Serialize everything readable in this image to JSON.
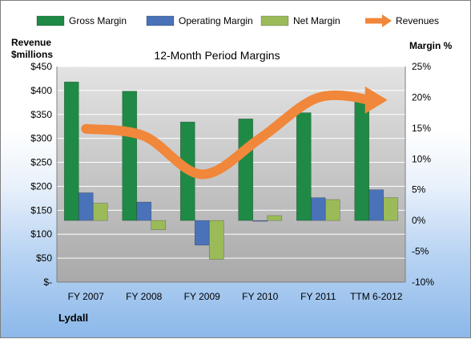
{
  "chart_data": {
    "type": "bar",
    "title": "12-Month Period Margins",
    "company": "Lydall",
    "y_left_label_line1": "Revenue",
    "y_left_label_line2": "$millions",
    "y_right_label": "Margin %",
    "categories": [
      "FY 2007",
      "FY 2008",
      "FY 2009",
      "FY 2010",
      "FY 2011",
      "TTM 6-2012"
    ],
    "ylim_left": [
      0,
      450
    ],
    "ylim_right": [
      -10,
      25
    ],
    "left_ticks": [
      0,
      50,
      100,
      150,
      200,
      250,
      300,
      350,
      400,
      450
    ],
    "left_tick_labels": [
      "$-",
      "$50",
      "$100",
      "$150",
      "$200",
      "$250",
      "$300",
      "$350",
      "$400",
      "$450"
    ],
    "right_ticks": [
      -10,
      -5,
      0,
      5,
      10,
      15,
      20,
      25
    ],
    "right_tick_labels": [
      "-10%",
      "-5%",
      "0%",
      "5%",
      "10%",
      "15%",
      "20%",
      "25%"
    ],
    "legend_position": "top",
    "grid": true,
    "series": [
      {
        "name": "Gross Margin",
        "axis": "right",
        "color": "#1e8a45",
        "values": [
          22.5,
          21,
          16,
          16.5,
          17.5,
          20
        ]
      },
      {
        "name": "Operating Margin",
        "axis": "right",
        "color": "#4a72b8",
        "values": [
          4.5,
          3,
          -4,
          0,
          3.7,
          5
        ]
      },
      {
        "name": "Net Margin",
        "axis": "right",
        "color": "#9bbb59",
        "values": [
          2.8,
          -1.5,
          -6.3,
          0.8,
          3.4,
          3.7
        ]
      },
      {
        "name": "Revenues",
        "axis": "left",
        "type": "line",
        "color": "#f0873a",
        "values": [
          320,
          305,
          225,
          300,
          385,
          380
        ]
      }
    ]
  }
}
